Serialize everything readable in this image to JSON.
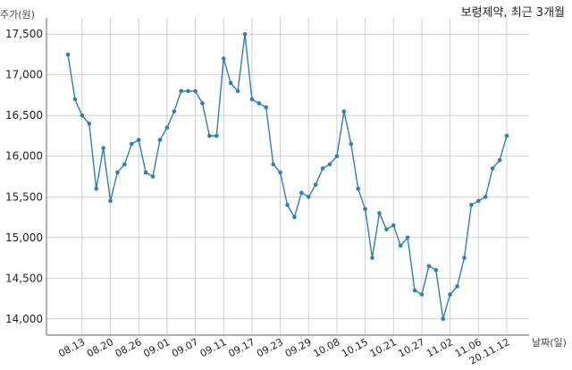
{
  "chart_data": {
    "type": "line",
    "title": "보령제약, 최근 3개월",
    "ylabel": "주가(원)",
    "xlabel": "날짜(일)",
    "ylim": [
      13800,
      17700
    ],
    "yticks": [
      14000,
      14500,
      15000,
      15500,
      16000,
      16500,
      17000,
      17500
    ],
    "ytick_labels": [
      "14,000",
      "14,500",
      "15,000",
      "15,500",
      "16,000",
      "16,500",
      "17,000",
      "17,500"
    ],
    "xtick_labels": [
      "08.13",
      "08.20",
      "08.26",
      "09.01",
      "09.07",
      "09.11",
      "09.17",
      "09.23",
      "09.29",
      "10.08",
      "10.15",
      "10.21",
      "10.27",
      "11.02",
      "11.06",
      "20.11.12"
    ],
    "xtick_index": [
      2,
      6,
      10,
      14,
      18,
      22,
      26,
      30,
      34,
      38,
      42,
      46,
      50,
      54,
      58,
      62
    ],
    "grid": true,
    "color": "#2f7fb5",
    "values": [
      17250,
      16700,
      16500,
      16400,
      15600,
      16100,
      15450,
      15800,
      15900,
      16150,
      16200,
      15800,
      15750,
      16200,
      16350,
      16550,
      16800,
      16800,
      16800,
      16650,
      16250,
      16250,
      17200,
      16900,
      16800,
      17500,
      16700,
      16650,
      16600,
      15900,
      15800,
      15400,
      15250,
      15550,
      15500,
      15650,
      15850,
      15900,
      16000,
      16550,
      16150,
      15600,
      15350,
      14750,
      15300,
      15100,
      15150,
      14900,
      15000,
      14350,
      14300,
      14650,
      14600,
      14000,
      14300,
      14400,
      14750,
      15400,
      15450,
      15500,
      15850,
      15950,
      16250
    ]
  }
}
